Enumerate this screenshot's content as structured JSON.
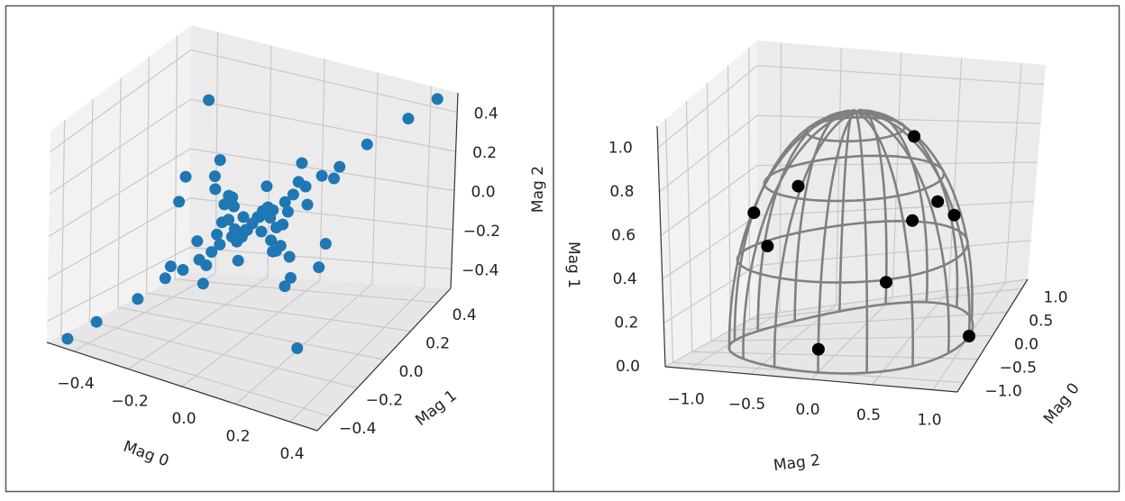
{
  "colors": {
    "frame": "#555555",
    "grid": "#c8c8c8",
    "pane_left": "#f2f2f2",
    "pane_right": "#ebebeb",
    "pane_floor": "#e6e6e6",
    "scatter": "#1f77b4",
    "wire": "#808080",
    "points": "#000000"
  },
  "chart_data": [
    {
      "type": "scatter",
      "projection": "3d",
      "xlabel": "Mag 0",
      "ylabel": "Mag 1",
      "zlabel": "Mag 2",
      "xlim": [
        -0.5,
        0.5
      ],
      "ylim": [
        -0.5,
        0.5
      ],
      "zlim": [
        -0.5,
        0.5
      ],
      "x_ticks": [
        "−0.4",
        "−0.2",
        "0.0",
        "0.2",
        "0.4"
      ],
      "y_ticks": [
        "−0.4",
        "−0.2",
        "0.0",
        "0.2",
        "0.4"
      ],
      "z_ticks": [
        "−0.4",
        "−0.2",
        "0.0",
        "0.2",
        "0.4"
      ],
      "grid": true,
      "series": [
        {
          "color": "#1f77b4",
          "points": [
            [
              0.45,
              0.45,
              0.48
            ],
            [
              0.38,
              0.38,
              0.4
            ],
            [
              0.28,
              0.28,
              0.3
            ],
            [
              0.12,
              0.12,
              0.25
            ],
            [
              0.2,
              0.2,
              0.16
            ],
            [
              -0.45,
              -0.45,
              -0.48
            ],
            [
              -0.38,
              -0.38,
              -0.4
            ],
            [
              -0.28,
              -0.28,
              -0.3
            ],
            [
              -0.12,
              -0.12,
              -0.25
            ],
            [
              -0.2,
              -0.2,
              -0.16
            ],
            [
              -0.3,
              0.25,
              0.35
            ],
            [
              0.3,
              -0.25,
              -0.35
            ],
            [
              -0.15,
              0.05,
              0.22
            ],
            [
              0.15,
              -0.05,
              -0.22
            ],
            [
              0.05,
              0.3,
              -0.05
            ],
            [
              -0.05,
              -0.3,
              0.05
            ],
            [
              0.3,
              -0.3,
              0.0
            ],
            [
              -0.3,
              0.3,
              0.0
            ],
            [
              0.2,
              0.1,
              -0.2
            ],
            [
              -0.2,
              -0.1,
              0.2
            ],
            [
              0.0,
              0.0,
              0.0
            ],
            [
              0.02,
              0.01,
              0.03
            ],
            [
              -0.02,
              -0.01,
              -0.03
            ],
            [
              0.05,
              0.05,
              0.05
            ],
            [
              -0.05,
              -0.05,
              -0.05
            ],
            [
              0.08,
              0.08,
              0.08
            ],
            [
              -0.08,
              -0.08,
              -0.08
            ],
            [
              0.1,
              0.1,
              0.11
            ],
            [
              -0.1,
              -0.1,
              -0.11
            ],
            [
              0.13,
              0.13,
              0.14
            ],
            [
              -0.13,
              -0.13,
              -0.14
            ],
            [
              0.04,
              -0.04,
              0.06
            ],
            [
              -0.04,
              0.04,
              -0.06
            ],
            [
              0.08,
              -0.08,
              0.12
            ],
            [
              -0.08,
              0.08,
              -0.12
            ],
            [
              0.12,
              -0.12,
              0.17
            ],
            [
              -0.12,
              0.12,
              -0.17
            ],
            [
              0.06,
              0.02,
              -0.07
            ],
            [
              -0.06,
              -0.02,
              0.07
            ],
            [
              0.12,
              0.04,
              -0.14
            ],
            [
              -0.12,
              -0.04,
              0.14
            ],
            [
              0.03,
              0.07,
              0.0
            ],
            [
              -0.03,
              -0.07,
              0.0
            ],
            [
              0.06,
              0.14,
              0.0
            ],
            [
              -0.06,
              -0.14,
              0.0
            ],
            [
              0.1,
              -0.02,
              0.02
            ],
            [
              -0.1,
              0.02,
              -0.02
            ],
            [
              0.17,
              0.17,
              0.18
            ],
            [
              -0.17,
              -0.17,
              -0.18
            ],
            [
              0.16,
              -0.16,
              0.0
            ],
            [
              -0.16,
              0.16,
              0.0
            ],
            [
              0.0,
              0.1,
              0.12
            ],
            [
              0.0,
              -0.1,
              -0.12
            ],
            [
              0.09,
              0.0,
              -0.1
            ],
            [
              -0.09,
              0.0,
              0.1
            ],
            [
              0.22,
              0.2,
              0.22
            ],
            [
              -0.22,
              -0.2,
              -0.22
            ],
            [
              0.2,
              -0.18,
              0.05
            ],
            [
              -0.2,
              0.18,
              -0.05
            ],
            [
              0.14,
              0.06,
              0.2
            ],
            [
              -0.14,
              -0.06,
              -0.2
            ],
            [
              0.01,
              0.2,
              -0.1
            ],
            [
              -0.01,
              -0.2,
              0.1
            ],
            [
              0.25,
              0.05,
              -0.05
            ],
            [
              -0.25,
              -0.05,
              0.05
            ],
            [
              0.07,
              -0.2,
              0.15
            ],
            [
              -0.07,
              0.2,
              -0.15
            ]
          ]
        }
      ]
    },
    {
      "type": "scatter",
      "projection": "3d",
      "xlabel": "Mag 0",
      "ylabel": "Mag 1",
      "zlabel": "Mag 2",
      "xlim": [
        -1.2,
        1.2
      ],
      "ylim": [
        -1.2,
        1.2
      ],
      "zlim": [
        0.0,
        1.1
      ],
      "x_ticks": [
        "−1.0",
        "−0.5",
        "0.0",
        "0.5",
        "1.0"
      ],
      "z_ticks": [
        "−1.0",
        "−0.5",
        "0.0",
        "0.5",
        "1.0"
      ],
      "y_ticks": [
        "0.0",
        "0.2",
        "0.4",
        "0.6",
        "0.8",
        "1.0"
      ],
      "grid": true,
      "surface": {
        "shape": "upper hemisphere wireframe",
        "radius": 1.0,
        "color": "#808080"
      },
      "series": [
        {
          "color": "#000000",
          "points": [
            [
              0.0,
              0.0,
              1.0
            ],
            [
              0.7,
              0.5,
              0.5
            ],
            [
              -0.7,
              0.5,
              -0.5
            ],
            [
              0.5,
              0.6,
              -0.62
            ],
            [
              -0.5,
              0.6,
              0.62
            ],
            [
              0.0,
              0.55,
              0.83
            ],
            [
              0.0,
              0.55,
              -0.83
            ],
            [
              0.99,
              0.1,
              0.0
            ],
            [
              -0.99,
              0.1,
              0.0
            ],
            [
              0.35,
              0.85,
              0.38
            ]
          ]
        }
      ]
    }
  ]
}
